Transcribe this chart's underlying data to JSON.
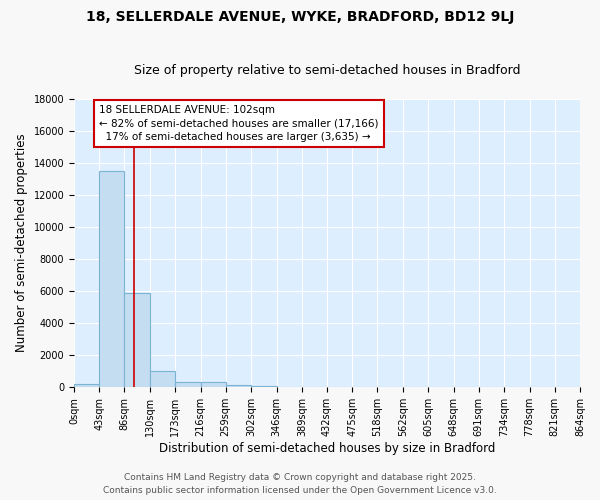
{
  "title": "18, SELLERDALE AVENUE, WYKE, BRADFORD, BD12 9LJ",
  "subtitle": "Size of property relative to semi-detached houses in Bradford",
  "xlabel": "Distribution of semi-detached houses by size in Bradford",
  "ylabel": "Number of semi-detached properties",
  "bar_edges": [
    0,
    43,
    86,
    130,
    173,
    216,
    259,
    302,
    346,
    389,
    432,
    475,
    518,
    562,
    605,
    648,
    691,
    734,
    778,
    821,
    864
  ],
  "bar_heights": [
    200,
    13500,
    5900,
    1000,
    350,
    350,
    150,
    100,
    0,
    0,
    0,
    0,
    0,
    0,
    0,
    0,
    0,
    0,
    0,
    0
  ],
  "bar_color": "#c5ddf0",
  "bar_edge_color": "#7ab3d4",
  "property_size": 102,
  "red_line_color": "#cc0000",
  "annotation_line1": "18 SELLERDALE AVENUE: 102sqm",
  "annotation_line2": "← 82% of semi-detached houses are smaller (17,166)",
  "annotation_line3": "  17% of semi-detached houses are larger (3,635) →",
  "annotation_box_color": "#ffffff",
  "annotation_box_edge": "#cc0000",
  "ylim": [
    0,
    18000
  ],
  "yticks": [
    0,
    2000,
    4000,
    6000,
    8000,
    10000,
    12000,
    14000,
    16000,
    18000
  ],
  "bg_color": "#ddeeff",
  "fig_bg_color": "#f8f8f8",
  "footer1": "Contains HM Land Registry data © Crown copyright and database right 2025.",
  "footer2": "Contains public sector information licensed under the Open Government Licence v3.0.",
  "title_fontsize": 10,
  "subtitle_fontsize": 9,
  "axis_label_fontsize": 8.5,
  "tick_fontsize": 7,
  "annotation_fontsize": 7.5,
  "footer_fontsize": 6.5
}
